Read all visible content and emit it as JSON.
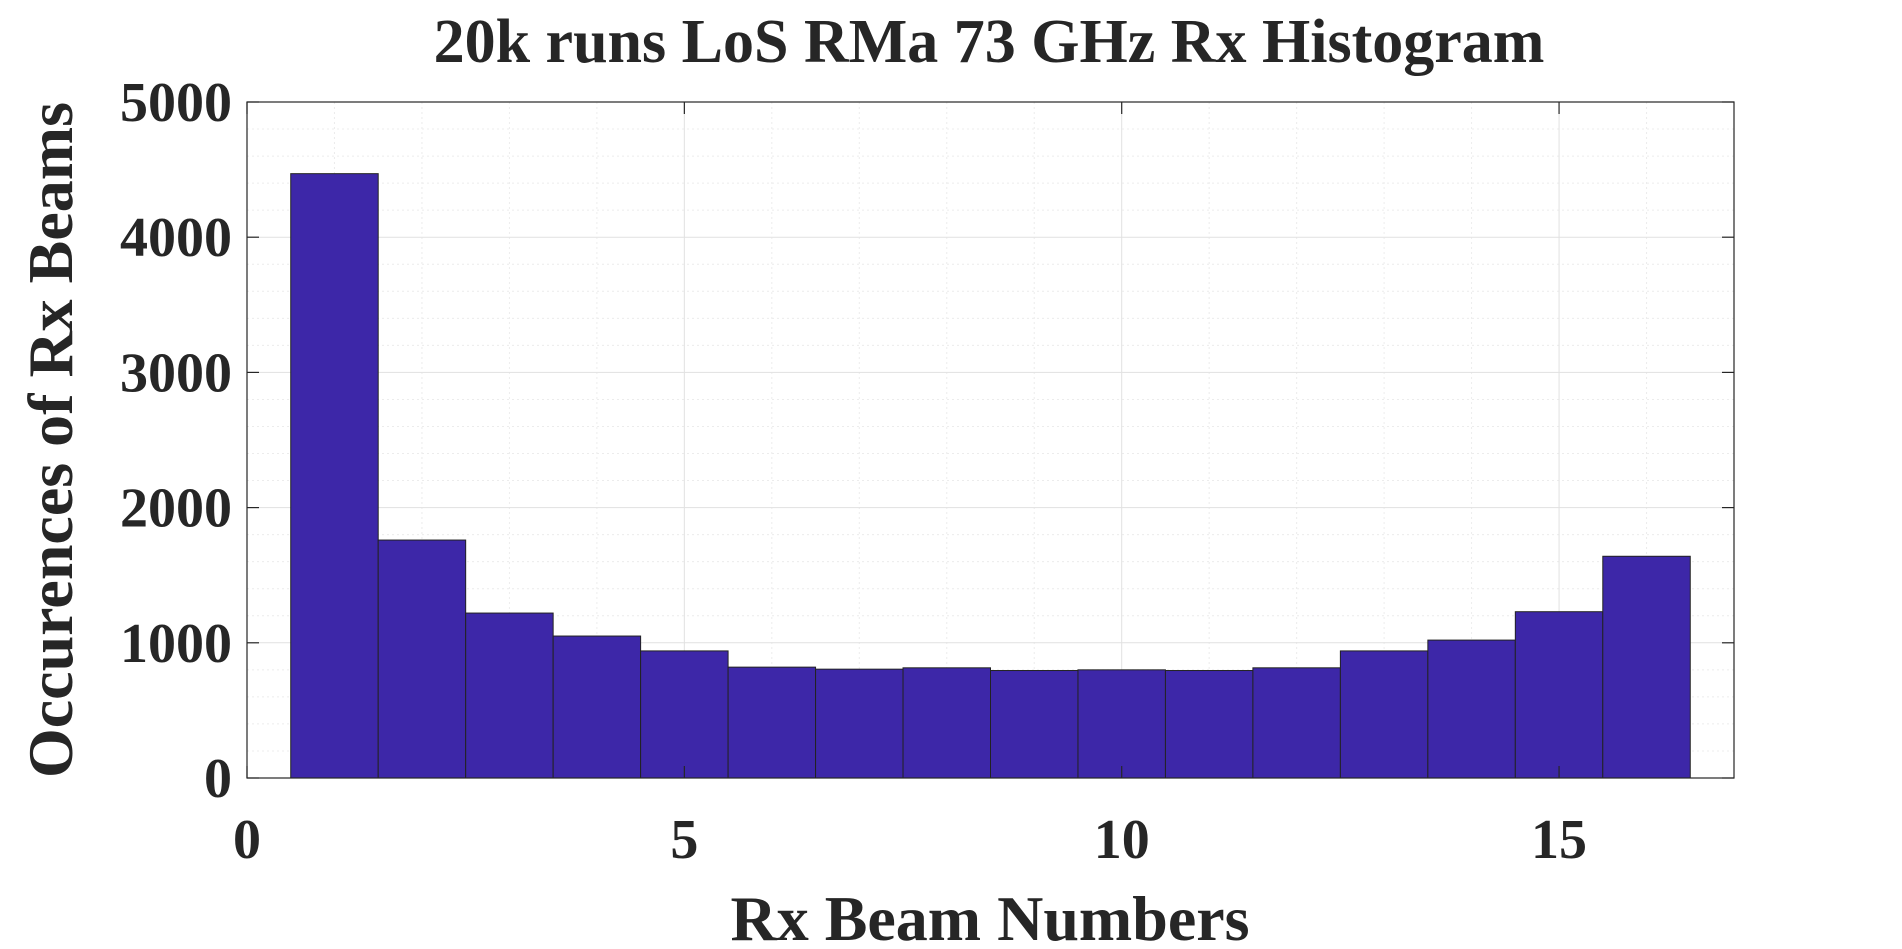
{
  "chart_data": {
    "type": "bar",
    "title": "20k runs LoS RMa 73 GHz Rx Histogram",
    "xlabel": "Rx Beam Numbers",
    "ylabel": "Occurences of Rx Beams",
    "xlim": [
      0,
      17
    ],
    "ylim": [
      0,
      5000
    ],
    "x_ticks": [
      0,
      5,
      10,
      15
    ],
    "y_ticks": [
      0,
      1000,
      2000,
      3000,
      4000,
      5000
    ],
    "x_tick_labels": [
      "0",
      "5",
      "10",
      "15"
    ],
    "y_tick_labels": [
      "0",
      "1000",
      "2000",
      "3000",
      "4000",
      "5000"
    ],
    "bin_width": 1,
    "categories": [
      1,
      2,
      3,
      4,
      5,
      6,
      7,
      8,
      9,
      10,
      11,
      12,
      13,
      14,
      15,
      16
    ],
    "values": [
      4470,
      1760,
      1220,
      1050,
      940,
      820,
      805,
      815,
      795,
      800,
      795,
      815,
      940,
      1020,
      1230,
      1640
    ],
    "bar_color": "#3d27a8",
    "grid": "major and minor"
  }
}
